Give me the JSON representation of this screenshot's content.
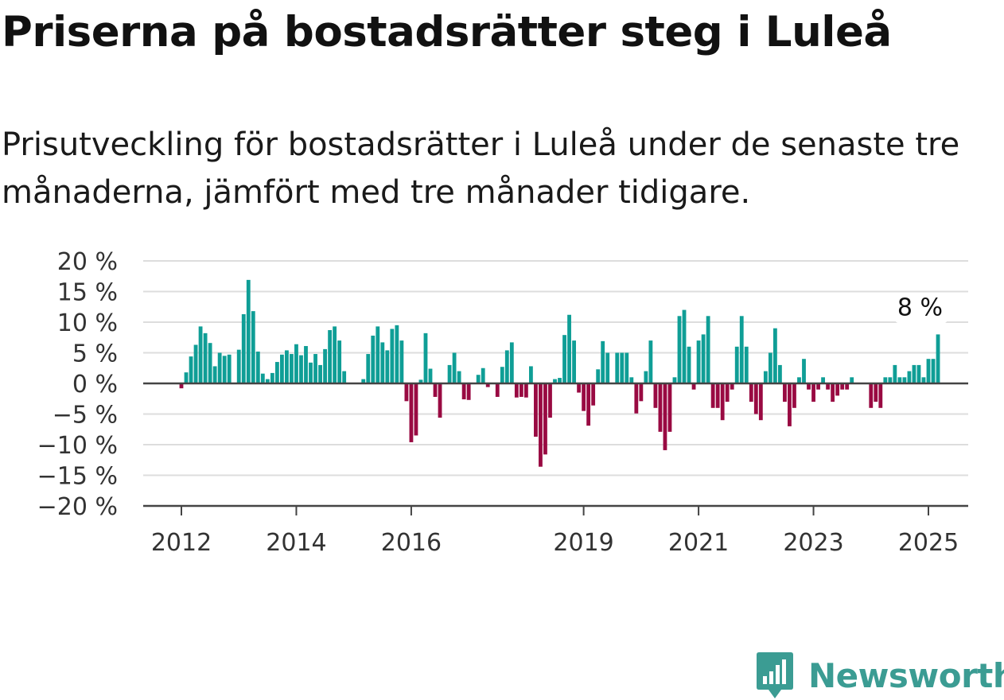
{
  "title": "Priserna på bostadsrätter steg i Luleå",
  "subtitle": "Prisutveckling för bostadsrätter i Luleå under de senaste tre månaderna, jämfört med tre månader tidigare.",
  "brand": "Newsworthy",
  "colors": {
    "positive": "#0f9e96",
    "negative": "#990a42",
    "zero_line": "#444444",
    "grid": "#dddddd",
    "brand": "#3b9c93"
  },
  "chart_data": {
    "type": "bar",
    "title": "",
    "xlabel": "",
    "ylabel": "",
    "x_start": "2011-07",
    "x_step": "month",
    "ylim": [
      -20,
      20
    ],
    "y_ticks": [
      20,
      15,
      10,
      5,
      0,
      -5,
      -10,
      -15,
      -20
    ],
    "y_tick_labels": [
      "20 %",
      "15 %",
      "10 %",
      "5 %",
      "0 %",
      "−5 %",
      "−10 %",
      "−15 %",
      "−20 %"
    ],
    "x_ticks": [
      {
        "label": "2012",
        "date": "2012-01"
      },
      {
        "label": "2014",
        "date": "2014-01"
      },
      {
        "label": "2016",
        "date": "2016-01"
      },
      {
        "label": "2019",
        "date": "2019-01"
      },
      {
        "label": "2021",
        "date": "2021-01"
      },
      {
        "label": "2023",
        "date": "2023-01"
      },
      {
        "label": "2025",
        "date": "2025-01"
      }
    ],
    "grid": true,
    "last_value_label": "8 %",
    "values": [
      null,
      null,
      null,
      null,
      null,
      null,
      -0.8,
      1.8,
      4.4,
      6.3,
      9.3,
      8.2,
      6.6,
      2.8,
      5.0,
      4.5,
      4.7,
      null,
      5.5,
      11.3,
      16.9,
      11.8,
      5.2,
      1.6,
      0.7,
      1.7,
      3.5,
      4.7,
      5.4,
      4.8,
      6.4,
      4.6,
      6.1,
      3.4,
      4.8,
      3.0,
      5.6,
      8.7,
      9.3,
      7.0,
      2.0,
      null,
      null,
      null,
      0.7,
      4.8,
      7.8,
      9.3,
      6.7,
      5.4,
      8.9,
      9.5,
      7.0,
      -2.9,
      -9.6,
      -8.5,
      0.6,
      8.2,
      2.4,
      -2.2,
      -5.6,
      null,
      3.0,
      5.0,
      2.0,
      -2.6,
      -2.7,
      null,
      1.4,
      2.5,
      -0.6,
      null,
      -2.2,
      2.7,
      5.4,
      6.7,
      -2.3,
      -2.2,
      -2.3,
      2.8,
      -8.7,
      -13.6,
      -11.6,
      -5.6,
      0.7,
      0.9,
      7.9,
      11.2,
      7.0,
      -1.5,
      -4.5,
      -6.9,
      -3.6,
      2.3,
      6.9,
      5.0,
      null,
      5.0,
      5.0,
      5.0,
      1.0,
      -4.9,
      -2.9,
      2.0,
      7.0,
      -4.0,
      -7.9,
      -10.9,
      -7.9,
      1.0,
      11.0,
      12.0,
      6.0,
      -1.0,
      7.0,
      8.0,
      11.0,
      -4.0,
      -4.0,
      -6.0,
      -3.0,
      -1.0,
      6.0,
      11.0,
      6.0,
      -3.0,
      -5.0,
      -6.0,
      2.0,
      5.0,
      9.0,
      3.0,
      -3.0,
      -7.0,
      -4.0,
      1.0,
      4.0,
      -1.0,
      -3.0,
      -1.0,
      1.0,
      -1.0,
      -3.0,
      -2.0,
      -1.0,
      -1.0,
      1.0,
      null,
      null,
      null,
      -4.0,
      -3.0,
      -4.0,
      1.0,
      1.0,
      3.0,
      1.0,
      1.0,
      2.0,
      3.0,
      3.0,
      1.0,
      4.0,
      4.0,
      8.0
    ]
  }
}
